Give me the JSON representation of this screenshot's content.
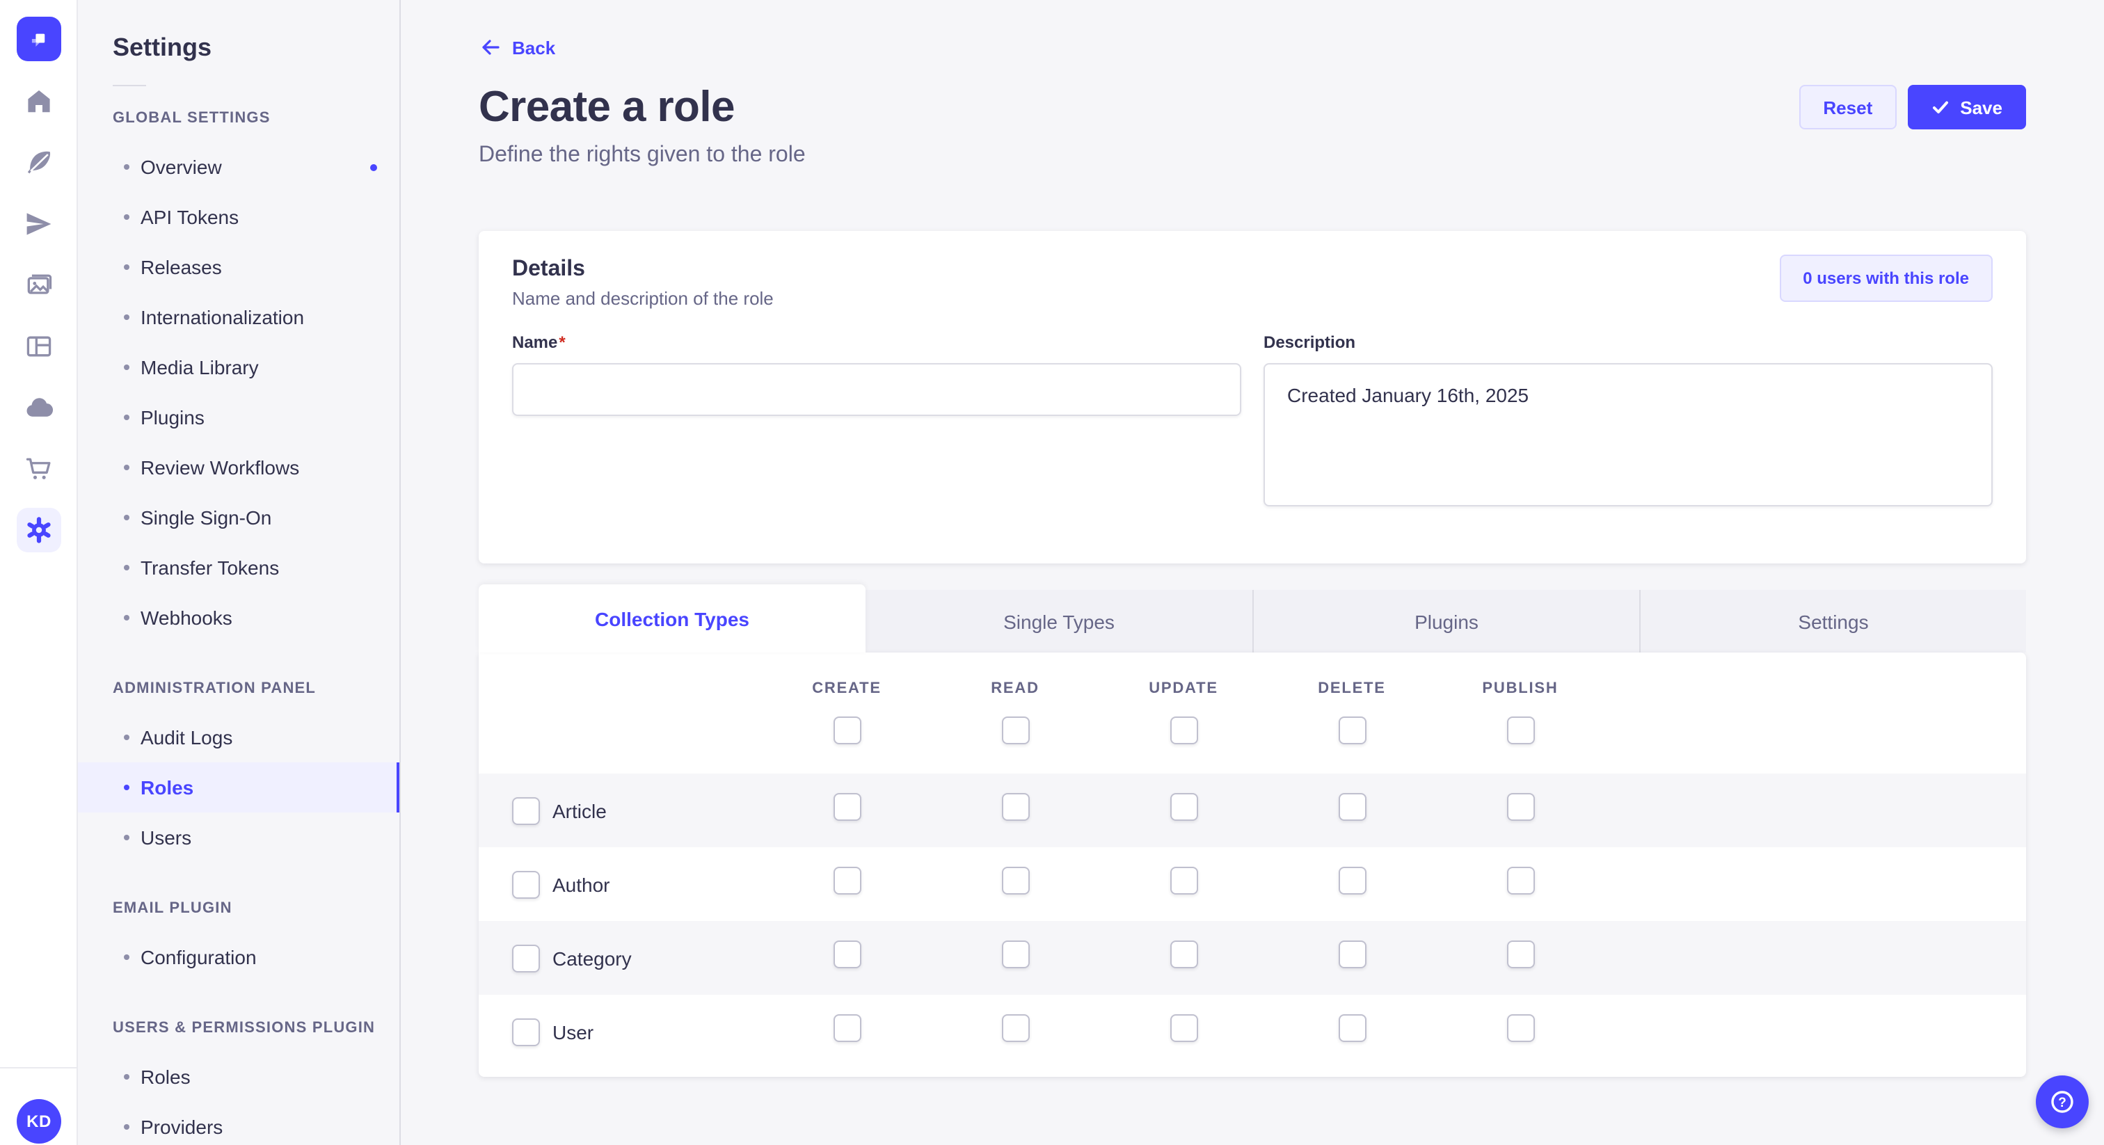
{
  "colors": {
    "primary": "#4945ff",
    "primary_light": "#f0f0ff",
    "primary_border": "#d9d8ff",
    "text": "#32324d",
    "muted": "#666687",
    "background": "#f6f6f9",
    "border": "#dcdce4",
    "required_mark": "#d02b20"
  },
  "rail": {
    "logo_icon": "strapi-logo",
    "icons": [
      {
        "name": "home-icon",
        "active": false
      },
      {
        "name": "content-manager-icon",
        "active": false
      },
      {
        "name": "releases-icon",
        "active": false
      },
      {
        "name": "media-library-icon",
        "active": false
      },
      {
        "name": "content-type-builder-icon",
        "active": false
      },
      {
        "name": "deploy-icon",
        "active": false
      },
      {
        "name": "marketplace-icon",
        "active": false
      },
      {
        "name": "settings-icon",
        "active": true
      }
    ],
    "avatar_initials": "KD"
  },
  "sidebar": {
    "title": "Settings",
    "sections": [
      {
        "label": "GLOBAL SETTINGS",
        "items": [
          {
            "label": "Overview",
            "notification_dot": true
          },
          {
            "label": "API Tokens"
          },
          {
            "label": "Releases"
          },
          {
            "label": "Internationalization"
          },
          {
            "label": "Media Library"
          },
          {
            "label": "Plugins"
          },
          {
            "label": "Review Workflows"
          },
          {
            "label": "Single Sign-On"
          },
          {
            "label": "Transfer Tokens"
          },
          {
            "label": "Webhooks"
          }
        ]
      },
      {
        "label": "ADMINISTRATION PANEL",
        "items": [
          {
            "label": "Audit Logs"
          },
          {
            "label": "Roles",
            "active": true
          },
          {
            "label": "Users"
          }
        ]
      },
      {
        "label": "EMAIL PLUGIN",
        "items": [
          {
            "label": "Configuration"
          }
        ]
      },
      {
        "label": "USERS & PERMISSIONS PLUGIN",
        "items": [
          {
            "label": "Roles"
          },
          {
            "label": "Providers"
          }
        ]
      }
    ]
  },
  "page": {
    "back_label": "Back",
    "title": "Create a role",
    "subtitle": "Define the rights given to the role",
    "reset_label": "Reset",
    "save_label": "Save"
  },
  "details_card": {
    "title": "Details",
    "subtitle": "Name and description of the role",
    "users_button_label": "0 users with this role",
    "name_label": "Name",
    "name_required_mark": "*",
    "name_value": "",
    "description_label": "Description",
    "description_value": "Created January 16th, 2025"
  },
  "permissions": {
    "tabs": [
      {
        "label": "Collection Types",
        "active": true
      },
      {
        "label": "Single Types",
        "active": false
      },
      {
        "label": "Plugins",
        "active": false
      },
      {
        "label": "Settings",
        "active": false
      }
    ],
    "columns": [
      "CREATE",
      "READ",
      "UPDATE",
      "DELETE",
      "PUBLISH"
    ],
    "rows": [
      {
        "label": "Article"
      },
      {
        "label": "Author"
      },
      {
        "label": "Category"
      },
      {
        "label": "User"
      }
    ],
    "all_checkboxes_state": "unchecked"
  },
  "help_button": {
    "icon": "question-mark-icon"
  }
}
